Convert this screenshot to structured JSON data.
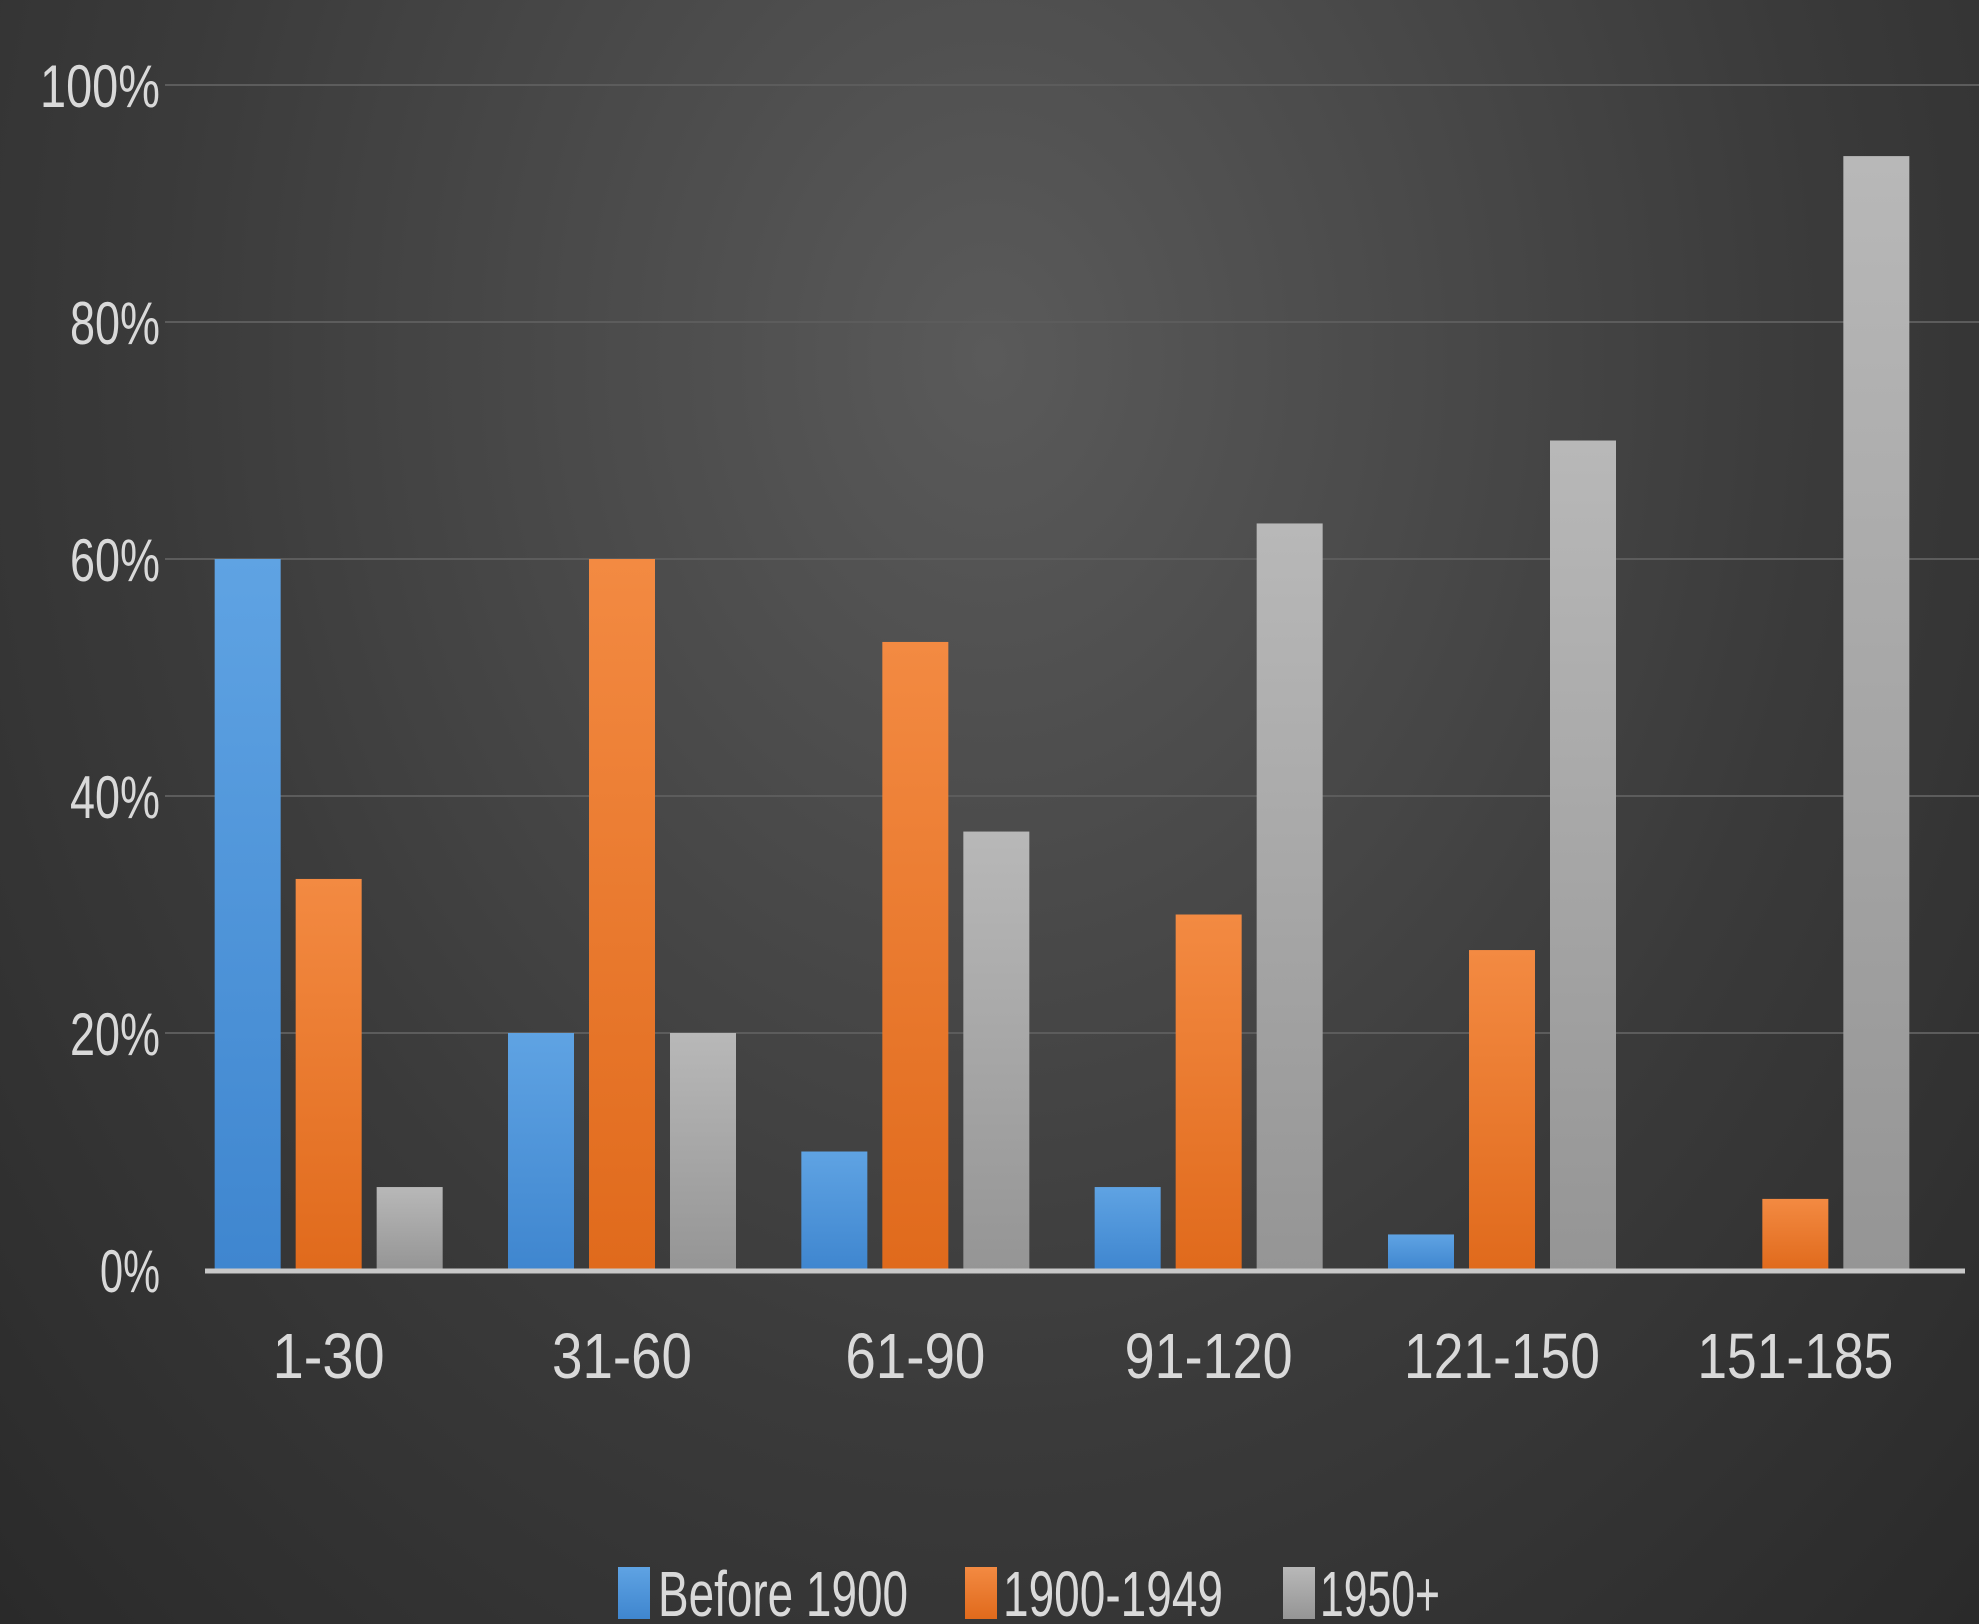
{
  "chart_data": {
    "type": "bar",
    "categories": [
      "1-30",
      "31-60",
      "61-90",
      "91-120",
      "121-150",
      "151-185"
    ],
    "series": [
      {
        "name": "Before 1900",
        "color": "#4f97dc",
        "values": [
          60,
          20,
          10,
          7,
          3,
          0
        ]
      },
      {
        "name": "1900-1949",
        "color": "#f0782a",
        "values": [
          33,
          60,
          53,
          30,
          27,
          6
        ]
      },
      {
        "name": "1950+",
        "color": "#a8a8a8",
        "values": [
          7,
          20,
          37,
          63,
          70,
          94
        ]
      }
    ],
    "ylim": [
      0,
      100
    ],
    "yticks": [
      "0%",
      "20%",
      "40%",
      "60%",
      "80%",
      "100%"
    ],
    "grid": true,
    "legend": "bottom"
  }
}
